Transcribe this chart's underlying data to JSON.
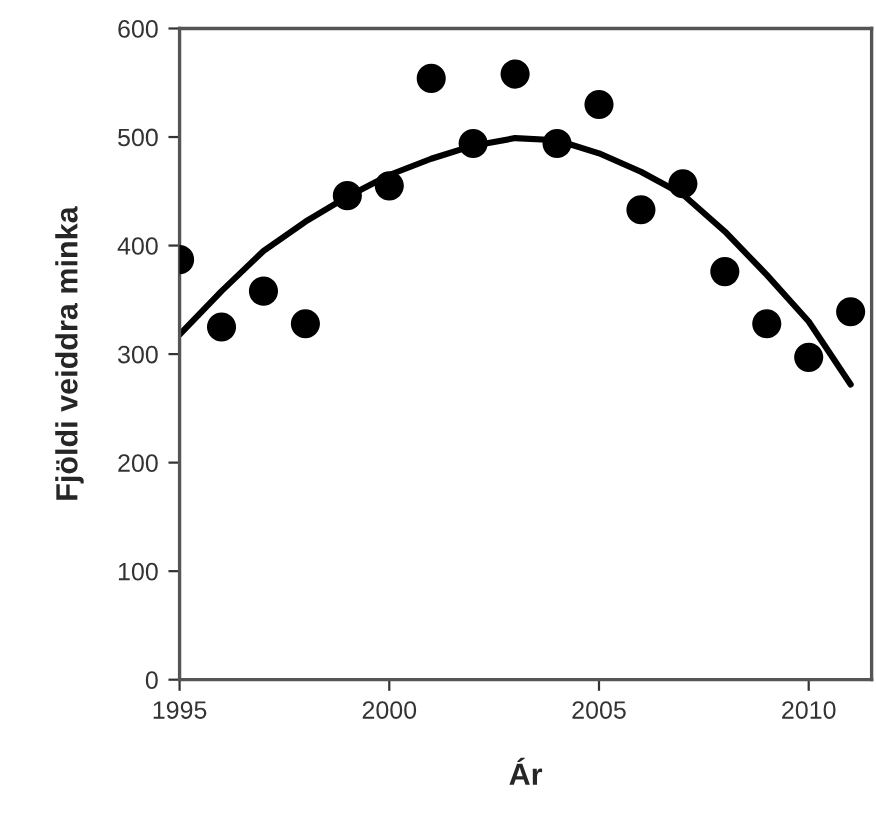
{
  "chart_data": {
    "type": "scatter",
    "xlabel": "Ár",
    "ylabel": "Fjöldi veiddra minka",
    "xlim": [
      1995,
      2011.5
    ],
    "xticks": [
      1995,
      2000,
      2005,
      2010
    ],
    "ylim": [
      0,
      600
    ],
    "yticks": [
      0,
      100,
      200,
      300,
      400,
      500,
      600
    ],
    "grid": false,
    "legend": false,
    "series": [
      {
        "marker": "circle",
        "color": "#000000",
        "x": [
          1995,
          1996,
          1997,
          1998,
          1999,
          2000,
          2001,
          2002,
          2003,
          2004,
          2005,
          2006,
          2007,
          2008,
          2009,
          2010,
          2011
        ],
        "values": [
          387,
          325,
          358,
          328,
          446,
          455,
          554,
          494,
          558,
          494,
          530,
          433,
          457,
          376,
          328,
          297,
          339
        ]
      },
      {
        "type": "line",
        "marker": "none",
        "color": "#000000",
        "line_style": "solid",
        "x": [
          1995,
          1996,
          1997,
          1998,
          1999,
          2000,
          2001,
          2002,
          2003,
          2004,
          2005,
          2006,
          2007,
          2008,
          2009,
          2010,
          2011
        ],
        "values": [
          318,
          358,
          395,
          422,
          445,
          465,
          480,
          492,
          499,
          497,
          485,
          468,
          447,
          413,
          373,
          330,
          272
        ]
      }
    ]
  }
}
